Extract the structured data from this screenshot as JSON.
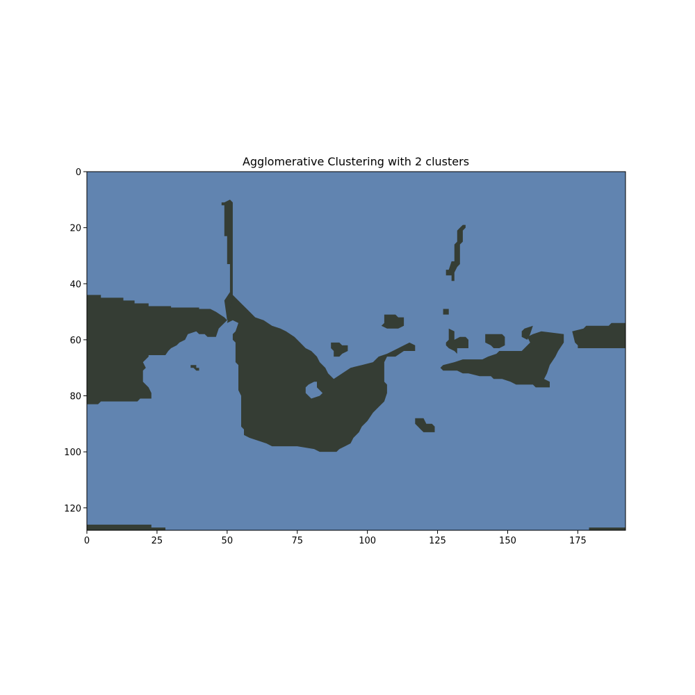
{
  "chart_data": {
    "type": "heatmap",
    "title": "Agglomerative Clustering with 2 clusters",
    "xlabel": "",
    "ylabel": "",
    "xlim": [
      0,
      192
    ],
    "ylim": [
      128,
      0
    ],
    "xticks": [
      0,
      25,
      50,
      75,
      100,
      125,
      150,
      175
    ],
    "yticks": [
      0,
      20,
      40,
      60,
      80,
      100,
      120
    ],
    "grid": false,
    "legend": "none",
    "colors": {
      "background_cluster": "#6184b0",
      "foreground_cluster": "#353d34"
    },
    "clusters": [
      {
        "label": 0,
        "color": "#6184b0"
      },
      {
        "label": 1,
        "color": "#353d34"
      }
    ],
    "foreground_regions": [
      {
        "name": "left landmass",
        "points": [
          [
            0,
            44
          ],
          [
            5,
            44
          ],
          [
            5,
            45
          ],
          [
            13,
            45
          ],
          [
            13,
            46
          ],
          [
            17,
            46
          ],
          [
            17,
            47
          ],
          [
            22,
            47
          ],
          [
            22,
            48
          ],
          [
            30,
            48
          ],
          [
            30,
            48.5
          ],
          [
            40,
            48.5
          ],
          [
            40,
            49
          ],
          [
            44,
            49
          ],
          [
            46,
            50
          ],
          [
            49,
            52
          ],
          [
            50,
            53
          ],
          [
            52,
            52
          ],
          [
            53,
            50
          ],
          [
            53,
            46
          ],
          [
            52,
            44
          ],
          [
            52,
            11
          ],
          [
            51,
            10
          ],
          [
            49,
            11
          ],
          [
            48,
            11
          ],
          [
            48,
            12
          ],
          [
            49,
            12
          ],
          [
            49,
            23
          ],
          [
            50,
            23
          ],
          [
            50,
            33
          ],
          [
            51,
            33
          ],
          [
            51,
            43
          ],
          [
            49,
            46
          ],
          [
            50,
            53
          ],
          [
            47,
            56
          ],
          [
            46,
            59
          ],
          [
            43,
            59
          ],
          [
            42,
            58
          ],
          [
            40,
            58
          ],
          [
            39,
            57
          ],
          [
            36,
            58
          ],
          [
            35,
            60
          ],
          [
            33,
            61
          ],
          [
            32,
            62
          ],
          [
            30,
            63
          ],
          [
            29,
            64
          ],
          [
            28,
            65.5
          ],
          [
            22,
            65.5
          ],
          [
            22,
            66
          ],
          [
            21,
            67
          ],
          [
            20,
            68
          ],
          [
            21,
            70
          ],
          [
            20,
            71
          ],
          [
            20,
            75
          ],
          [
            22,
            77
          ],
          [
            23,
            79
          ],
          [
            23,
            81
          ],
          [
            19,
            81
          ],
          [
            18,
            82
          ],
          [
            5,
            82
          ],
          [
            4,
            83
          ],
          [
            0,
            83
          ]
        ]
      },
      {
        "name": "left small dot",
        "points": [
          [
            37,
            69
          ],
          [
            39,
            69
          ],
          [
            39,
            70
          ],
          [
            40,
            70
          ],
          [
            40,
            71
          ],
          [
            39,
            71
          ],
          [
            38,
            70
          ],
          [
            37,
            70
          ]
        ]
      },
      {
        "name": "left lower edge",
        "points": [
          [
            0,
            126
          ],
          [
            23,
            126
          ],
          [
            23,
            127
          ],
          [
            28,
            127
          ],
          [
            28,
            128
          ],
          [
            0,
            128
          ]
        ]
      },
      {
        "name": "central landmass",
        "points": [
          [
            52,
            44
          ],
          [
            55,
            47
          ],
          [
            57,
            49
          ],
          [
            60,
            52
          ],
          [
            63,
            53
          ],
          [
            66,
            55
          ],
          [
            69,
            56
          ],
          [
            71,
            57
          ],
          [
            74,
            59
          ],
          [
            76,
            61
          ],
          [
            78,
            63
          ],
          [
            80,
            64
          ],
          [
            82,
            66
          ],
          [
            83,
            68
          ],
          [
            85,
            70
          ],
          [
            86,
            72
          ],
          [
            88,
            74
          ],
          [
            91,
            72
          ],
          [
            94,
            70
          ],
          [
            98,
            69
          ],
          [
            102,
            68
          ],
          [
            104,
            66
          ],
          [
            107,
            65
          ],
          [
            109,
            64
          ],
          [
            111,
            63
          ],
          [
            113,
            62
          ],
          [
            115,
            61
          ],
          [
            117,
            62
          ],
          [
            117,
            64
          ],
          [
            113,
            64
          ],
          [
            110,
            66
          ],
          [
            107,
            66
          ],
          [
            106,
            68
          ],
          [
            106,
            75
          ],
          [
            107,
            76
          ],
          [
            107,
            79
          ],
          [
            106,
            82
          ],
          [
            104,
            84
          ],
          [
            102,
            86
          ],
          [
            100,
            89
          ],
          [
            98,
            91
          ],
          [
            97,
            93
          ],
          [
            95,
            95
          ],
          [
            94,
            97
          ],
          [
            92,
            98
          ],
          [
            90,
            99
          ],
          [
            89,
            100
          ],
          [
            83,
            100
          ],
          [
            81,
            99
          ],
          [
            75,
            98
          ],
          [
            66,
            98
          ],
          [
            64,
            97
          ],
          [
            61,
            96
          ],
          [
            58,
            95
          ],
          [
            56,
            94
          ],
          [
            56,
            92
          ],
          [
            55,
            91
          ],
          [
            55,
            80
          ],
          [
            54,
            78
          ],
          [
            54,
            69
          ],
          [
            53,
            68
          ],
          [
            53,
            61
          ],
          [
            52,
            60
          ],
          [
            52,
            58
          ],
          [
            53,
            57
          ],
          [
            54,
            54
          ],
          [
            52,
            53
          ],
          [
            50,
            54
          ],
          [
            51,
            49
          ],
          [
            52,
            46
          ]
        ]
      },
      {
        "name": "central hole",
        "points": [
          [
            79,
            76
          ],
          [
            81,
            75
          ],
          [
            82,
            75
          ],
          [
            82,
            77
          ],
          [
            83,
            78
          ],
          [
            84,
            79
          ],
          [
            83,
            80
          ],
          [
            80,
            81
          ],
          [
            79,
            80
          ],
          [
            78,
            79
          ],
          [
            78,
            77
          ]
        ]
      },
      {
        "name": "small island A",
        "points": [
          [
            87,
            61
          ],
          [
            90,
            61
          ],
          [
            91,
            62
          ],
          [
            93,
            62
          ],
          [
            93,
            64
          ],
          [
            91,
            65
          ],
          [
            90,
            66
          ],
          [
            88,
            66
          ],
          [
            88,
            64
          ],
          [
            87,
            63
          ]
        ]
      },
      {
        "name": "small island B",
        "points": [
          [
            106,
            51
          ],
          [
            110,
            51
          ],
          [
            111,
            52
          ],
          [
            113,
            52
          ],
          [
            113,
            55
          ],
          [
            111,
            56
          ],
          [
            107,
            56
          ],
          [
            105,
            55
          ],
          [
            106,
            54
          ]
        ]
      },
      {
        "name": "small island C",
        "points": [
          [
            117,
            88
          ],
          [
            120,
            88
          ],
          [
            121,
            90
          ],
          [
            123,
            90
          ],
          [
            124,
            91
          ],
          [
            124,
            93
          ],
          [
            120,
            93
          ],
          [
            119,
            92
          ],
          [
            118,
            91
          ],
          [
            117,
            90
          ]
        ]
      },
      {
        "name": "north islet",
        "points": [
          [
            134,
            19
          ],
          [
            135,
            19
          ],
          [
            135,
            20
          ],
          [
            134,
            21
          ],
          [
            134,
            25
          ],
          [
            133,
            26
          ],
          [
            133,
            33
          ],
          [
            132,
            34
          ],
          [
            131,
            36
          ],
          [
            131,
            39
          ],
          [
            130,
            39
          ],
          [
            130,
            37
          ],
          [
            128,
            37
          ],
          [
            128,
            35
          ],
          [
            129,
            35
          ],
          [
            130,
            32
          ],
          [
            131,
            32
          ],
          [
            131,
            26
          ],
          [
            132,
            25
          ],
          [
            132,
            21
          ],
          [
            133,
            20
          ]
        ]
      },
      {
        "name": "small dot C",
        "points": [
          [
            127,
            49
          ],
          [
            129,
            49
          ],
          [
            129,
            51
          ],
          [
            127,
            51
          ]
        ]
      },
      {
        "name": "east archipelago",
        "points": [
          [
            129,
            56
          ],
          [
            131,
            57
          ],
          [
            131,
            60
          ],
          [
            133,
            59
          ],
          [
            135,
            59
          ],
          [
            136,
            60
          ],
          [
            136,
            63
          ],
          [
            132,
            63
          ],
          [
            132,
            65
          ],
          [
            131,
            64
          ],
          [
            129,
            63
          ],
          [
            128,
            62
          ],
          [
            128,
            61
          ],
          [
            129,
            60
          ]
        ]
      },
      {
        "name": "east landmass",
        "points": [
          [
            131,
            68
          ],
          [
            134,
            67
          ],
          [
            141,
            67
          ],
          [
            143,
            66
          ],
          [
            146,
            65
          ],
          [
            147,
            64
          ],
          [
            155,
            64
          ],
          [
            158,
            61
          ],
          [
            157,
            59
          ],
          [
            159,
            58
          ],
          [
            162,
            57
          ],
          [
            166,
            57.5
          ],
          [
            170,
            58
          ],
          [
            170,
            61
          ],
          [
            168,
            64
          ],
          [
            167,
            66
          ],
          [
            165,
            69
          ],
          [
            164,
            72
          ],
          [
            163,
            74
          ],
          [
            165,
            75
          ],
          [
            165,
            77
          ],
          [
            160,
            77
          ],
          [
            159,
            76
          ],
          [
            153,
            76
          ],
          [
            151,
            75
          ],
          [
            148,
            74
          ],
          [
            145,
            74
          ],
          [
            144,
            73
          ],
          [
            140,
            73
          ],
          [
            136,
            72
          ],
          [
            134,
            72
          ],
          [
            132,
            71
          ],
          [
            127,
            71
          ],
          [
            126,
            70
          ],
          [
            127,
            69
          ]
        ]
      },
      {
        "name": "east blob A",
        "points": [
          [
            142,
            58
          ],
          [
            148,
            58
          ],
          [
            149,
            59
          ],
          [
            149,
            62
          ],
          [
            147,
            63
          ],
          [
            145,
            63
          ],
          [
            144,
            62
          ],
          [
            142,
            61
          ]
        ]
      },
      {
        "name": "east blob B",
        "points": [
          [
            156,
            56
          ],
          [
            159,
            55
          ],
          [
            158,
            58
          ],
          [
            157,
            60
          ],
          [
            155,
            59
          ],
          [
            155,
            57
          ]
        ]
      },
      {
        "name": "east blob C",
        "points": [
          [
            173,
            57
          ],
          [
            177,
            56
          ],
          [
            178,
            55
          ],
          [
            186,
            55
          ],
          [
            187,
            54
          ],
          [
            192,
            54
          ],
          [
            192,
            63
          ],
          [
            175,
            63
          ],
          [
            175,
            62
          ],
          [
            174,
            61
          ]
        ]
      },
      {
        "name": "right lower edge",
        "points": [
          [
            179,
            127
          ],
          [
            192,
            127
          ],
          [
            192,
            128
          ],
          [
            179,
            128
          ]
        ]
      }
    ]
  }
}
